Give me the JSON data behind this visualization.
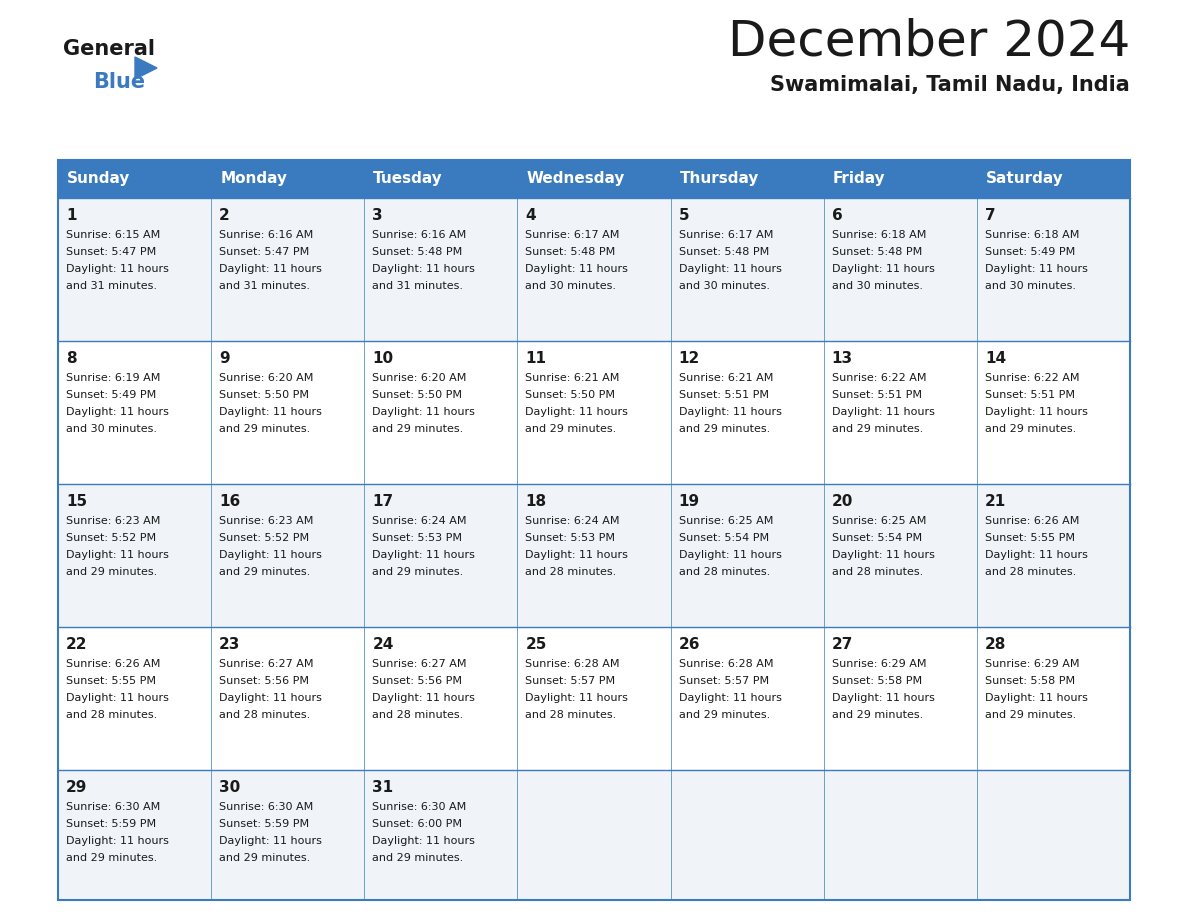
{
  "title": "December 2024",
  "subtitle": "Swamimalai, Tamil Nadu, India",
  "header_bg": "#3a7abf",
  "header_text_color": "#ffffff",
  "row_bg_odd": "#f0f4f8",
  "row_bg_even": "#ffffff",
  "border_color": "#3a7abf",
  "text_color": "#1a1a1a",
  "day_headers": [
    "Sunday",
    "Monday",
    "Tuesday",
    "Wednesday",
    "Thursday",
    "Friday",
    "Saturday"
  ],
  "days": [
    {
      "day": 1,
      "col": 0,
      "row": 0,
      "sunrise": "6:15 AM",
      "sunset": "5:47 PM",
      "daylight": "11 hours and 31 minutes."
    },
    {
      "day": 2,
      "col": 1,
      "row": 0,
      "sunrise": "6:16 AM",
      "sunset": "5:47 PM",
      "daylight": "11 hours and 31 minutes."
    },
    {
      "day": 3,
      "col": 2,
      "row": 0,
      "sunrise": "6:16 AM",
      "sunset": "5:48 PM",
      "daylight": "11 hours and 31 minutes."
    },
    {
      "day": 4,
      "col": 3,
      "row": 0,
      "sunrise": "6:17 AM",
      "sunset": "5:48 PM",
      "daylight": "11 hours and 30 minutes."
    },
    {
      "day": 5,
      "col": 4,
      "row": 0,
      "sunrise": "6:17 AM",
      "sunset": "5:48 PM",
      "daylight": "11 hours and 30 minutes."
    },
    {
      "day": 6,
      "col": 5,
      "row": 0,
      "sunrise": "6:18 AM",
      "sunset": "5:48 PM",
      "daylight": "11 hours and 30 minutes."
    },
    {
      "day": 7,
      "col": 6,
      "row": 0,
      "sunrise": "6:18 AM",
      "sunset": "5:49 PM",
      "daylight": "11 hours and 30 minutes."
    },
    {
      "day": 8,
      "col": 0,
      "row": 1,
      "sunrise": "6:19 AM",
      "sunset": "5:49 PM",
      "daylight": "11 hours and 30 minutes."
    },
    {
      "day": 9,
      "col": 1,
      "row": 1,
      "sunrise": "6:20 AM",
      "sunset": "5:50 PM",
      "daylight": "11 hours and 29 minutes."
    },
    {
      "day": 10,
      "col": 2,
      "row": 1,
      "sunrise": "6:20 AM",
      "sunset": "5:50 PM",
      "daylight": "11 hours and 29 minutes."
    },
    {
      "day": 11,
      "col": 3,
      "row": 1,
      "sunrise": "6:21 AM",
      "sunset": "5:50 PM",
      "daylight": "11 hours and 29 minutes."
    },
    {
      "day": 12,
      "col": 4,
      "row": 1,
      "sunrise": "6:21 AM",
      "sunset": "5:51 PM",
      "daylight": "11 hours and 29 minutes."
    },
    {
      "day": 13,
      "col": 5,
      "row": 1,
      "sunrise": "6:22 AM",
      "sunset": "5:51 PM",
      "daylight": "11 hours and 29 minutes."
    },
    {
      "day": 14,
      "col": 6,
      "row": 1,
      "sunrise": "6:22 AM",
      "sunset": "5:51 PM",
      "daylight": "11 hours and 29 minutes."
    },
    {
      "day": 15,
      "col": 0,
      "row": 2,
      "sunrise": "6:23 AM",
      "sunset": "5:52 PM",
      "daylight": "11 hours and 29 minutes."
    },
    {
      "day": 16,
      "col": 1,
      "row": 2,
      "sunrise": "6:23 AM",
      "sunset": "5:52 PM",
      "daylight": "11 hours and 29 minutes."
    },
    {
      "day": 17,
      "col": 2,
      "row": 2,
      "sunrise": "6:24 AM",
      "sunset": "5:53 PM",
      "daylight": "11 hours and 29 minutes."
    },
    {
      "day": 18,
      "col": 3,
      "row": 2,
      "sunrise": "6:24 AM",
      "sunset": "5:53 PM",
      "daylight": "11 hours and 28 minutes."
    },
    {
      "day": 19,
      "col": 4,
      "row": 2,
      "sunrise": "6:25 AM",
      "sunset": "5:54 PM",
      "daylight": "11 hours and 28 minutes."
    },
    {
      "day": 20,
      "col": 5,
      "row": 2,
      "sunrise": "6:25 AM",
      "sunset": "5:54 PM",
      "daylight": "11 hours and 28 minutes."
    },
    {
      "day": 21,
      "col": 6,
      "row": 2,
      "sunrise": "6:26 AM",
      "sunset": "5:55 PM",
      "daylight": "11 hours and 28 minutes."
    },
    {
      "day": 22,
      "col": 0,
      "row": 3,
      "sunrise": "6:26 AM",
      "sunset": "5:55 PM",
      "daylight": "11 hours and 28 minutes."
    },
    {
      "day": 23,
      "col": 1,
      "row": 3,
      "sunrise": "6:27 AM",
      "sunset": "5:56 PM",
      "daylight": "11 hours and 28 minutes."
    },
    {
      "day": 24,
      "col": 2,
      "row": 3,
      "sunrise": "6:27 AM",
      "sunset": "5:56 PM",
      "daylight": "11 hours and 28 minutes."
    },
    {
      "day": 25,
      "col": 3,
      "row": 3,
      "sunrise": "6:28 AM",
      "sunset": "5:57 PM",
      "daylight": "11 hours and 28 minutes."
    },
    {
      "day": 26,
      "col": 4,
      "row": 3,
      "sunrise": "6:28 AM",
      "sunset": "5:57 PM",
      "daylight": "11 hours and 29 minutes."
    },
    {
      "day": 27,
      "col": 5,
      "row": 3,
      "sunrise": "6:29 AM",
      "sunset": "5:58 PM",
      "daylight": "11 hours and 29 minutes."
    },
    {
      "day": 28,
      "col": 6,
      "row": 3,
      "sunrise": "6:29 AM",
      "sunset": "5:58 PM",
      "daylight": "11 hours and 29 minutes."
    },
    {
      "day": 29,
      "col": 0,
      "row": 4,
      "sunrise": "6:30 AM",
      "sunset": "5:59 PM",
      "daylight": "11 hours and 29 minutes."
    },
    {
      "day": 30,
      "col": 1,
      "row": 4,
      "sunrise": "6:30 AM",
      "sunset": "5:59 PM",
      "daylight": "11 hours and 29 minutes."
    },
    {
      "day": 31,
      "col": 2,
      "row": 4,
      "sunrise": "6:30 AM",
      "sunset": "6:00 PM",
      "daylight": "11 hours and 29 minutes."
    }
  ],
  "logo_text_general": "General",
  "logo_text_blue": "Blue",
  "logo_color_general": "#1a1a1a",
  "logo_color_blue": "#3a7abf",
  "logo_triangle_color": "#3a7abf",
  "title_fontsize": 36,
  "subtitle_fontsize": 15,
  "header_fontsize": 11,
  "daynum_fontsize": 11,
  "cell_fontsize": 8,
  "logo_fontsize": 15
}
